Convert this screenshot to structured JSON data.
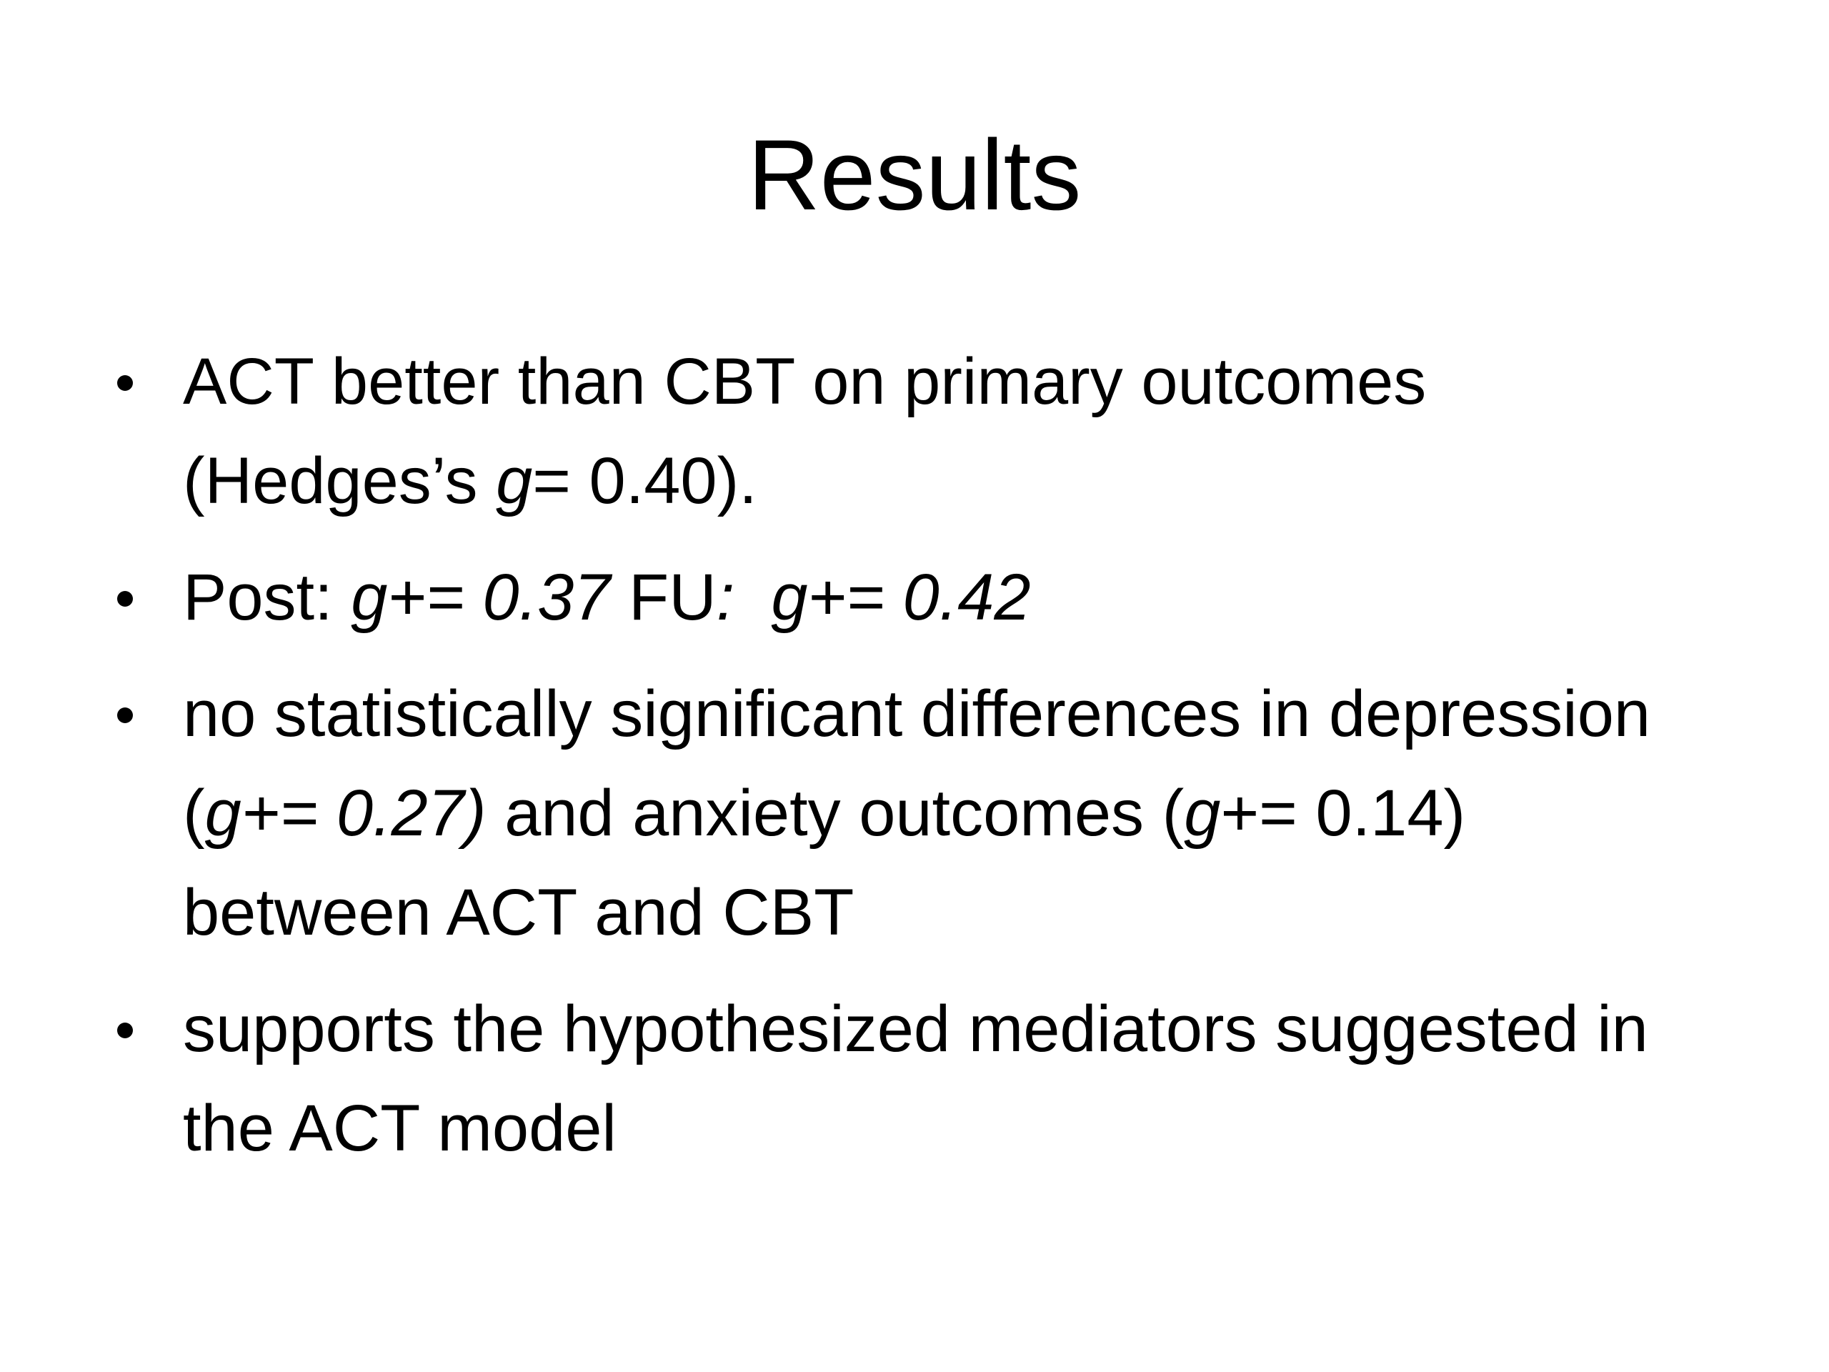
{
  "slide": {
    "title": "Results",
    "bullets": [
      {
        "runs": [
          {
            "text": "ACT better than CBT on primary outcomes (Hedges’s ",
            "italic": false
          },
          {
            "text": "g",
            "italic": true
          },
          {
            "text": "= 0.40).",
            "italic": false
          }
        ]
      },
      {
        "runs": [
          {
            "text": "Post: ",
            "italic": false
          },
          {
            "text": "g+= 0.37",
            "italic": true
          },
          {
            "text": " FU",
            "italic": false
          },
          {
            "text": ":  g+= 0.42",
            "italic": true
          }
        ]
      },
      {
        "runs": [
          {
            "text": "no statistically significant differences in depression (",
            "italic": false
          },
          {
            "text": "g+= 0.27)",
            "italic": true
          },
          {
            "text": " and anxiety outcomes (",
            "italic": false
          },
          {
            "text": "g",
            "italic": true
          },
          {
            "text": "+= 0.14) between ACT and CBT",
            "italic": false
          }
        ]
      },
      {
        "runs": [
          {
            "text": "supports the hypothesized mediators suggested in the ACT model",
            "italic": false
          }
        ]
      }
    ]
  }
}
